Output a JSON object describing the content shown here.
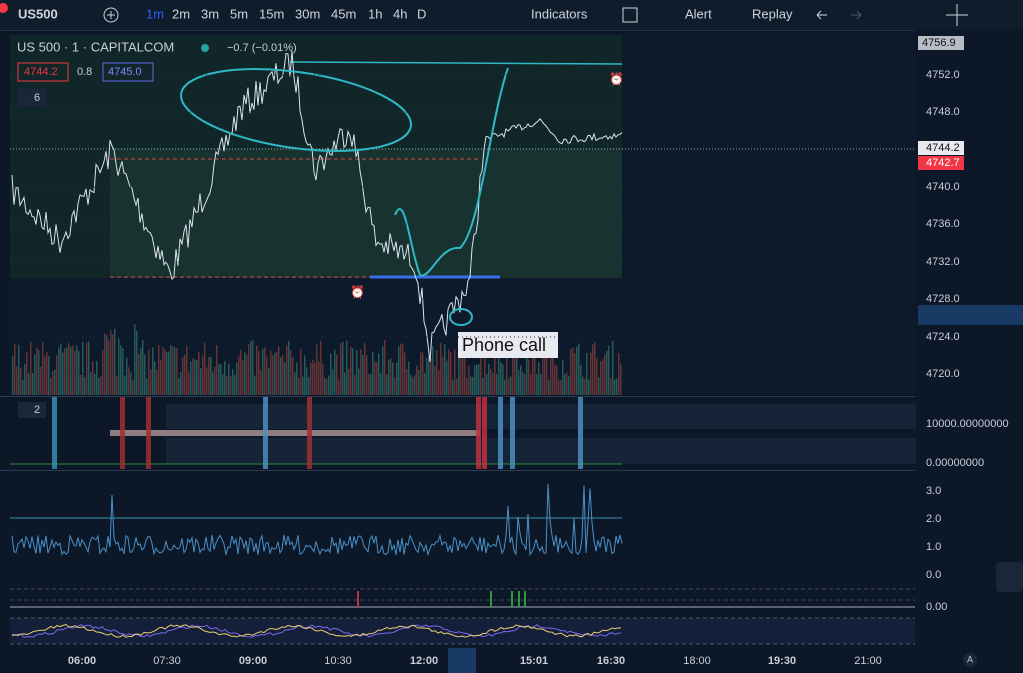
{
  "toolbar": {
    "symbol": "US500",
    "timeframes": [
      "1m",
      "2m",
      "3m",
      "5m",
      "15m",
      "30m",
      "45m",
      "1h",
      "4h",
      "D"
    ],
    "indicators": "Indicators",
    "alert": "Alert",
    "replay": "Replay"
  },
  "legend": {
    "title": "US 500 · 1 · CAPITALCOM",
    "change": "−0.7 (−0.01%)",
    "bid": "4744.2",
    "spread": "0.8",
    "ask": "4745.0",
    "indicator_count": "6"
  },
  "price_axis": {
    "top_badge": "4756.9",
    "labels": [
      "4752.0",
      "4748.0",
      "4744.2",
      "4742.7",
      "4740.0",
      "4736.0",
      "4732.0",
      "4728.0",
      "4724.0",
      "4720.0"
    ]
  },
  "pane2": {
    "count": "2",
    "labels": [
      "10000.00000000",
      "0.00000000"
    ]
  },
  "pane3": {
    "labels": [
      "3.0",
      "2.0",
      "1.0",
      "0.0"
    ]
  },
  "pane4": {
    "labels": [
      "0.00"
    ]
  },
  "annotation": "Phone call",
  "time_axis": [
    "06:00",
    "07:30",
    "09:00",
    "10:30",
    "12:00",
    "15:01",
    "16:30",
    "18:00",
    "19:30",
    "21:00"
  ],
  "auto_scale": "A"
}
